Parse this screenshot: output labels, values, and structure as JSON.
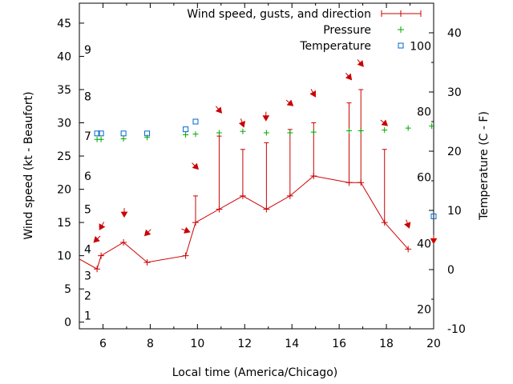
{
  "chart_data": {
    "type": "line",
    "xlabel": "Local time (America/Chicago)",
    "ylabel_left": "Wind speed (kt - Beaufort)",
    "ylabel_right": "Temperature (C - F)",
    "xlim": [
      5,
      20
    ],
    "ylim_left": [
      -1,
      48
    ],
    "ylim_right": [
      -10,
      45
    ],
    "x_ticks": [
      6,
      8,
      10,
      12,
      14,
      16,
      18,
      20
    ],
    "y_left_ticks": [
      0,
      5,
      10,
      15,
      20,
      25,
      30,
      35,
      40,
      45
    ],
    "y_right_ticks": [
      -10,
      0,
      10,
      20,
      30,
      40
    ],
    "beaufort_labels": [
      {
        "label": "1",
        "wind_kt": 1
      },
      {
        "label": "2",
        "wind_kt": 4
      },
      {
        "label": "3",
        "wind_kt": 7
      },
      {
        "label": "4",
        "wind_kt": 11
      },
      {
        "label": "5",
        "wind_kt": 17
      },
      {
        "label": "6",
        "wind_kt": 22
      },
      {
        "label": "7",
        "wind_kt": 28
      },
      {
        "label": "8",
        "wind_kt": 34
      },
      {
        "label": "9",
        "wind_kt": 41
      }
    ],
    "fahrenheit_labels": [
      {
        "label": "20",
        "temp_c": -6.7
      },
      {
        "label": "40",
        "temp_c": 4.4
      },
      {
        "label": "60",
        "temp_c": 15.6
      },
      {
        "label": "80",
        "temp_c": 26.7
      },
      {
        "label": "100",
        "temp_c": 37.8
      }
    ],
    "legend": {
      "wind": "Wind speed, gusts, and direction",
      "pressure": "Pressure",
      "temperature": "Temperature"
    },
    "wind_series": [
      {
        "x": 5.0,
        "speed": 9.5,
        "gust": null
      },
      {
        "x": 5.75,
        "speed": 8,
        "gust": null
      },
      {
        "x": 5.92,
        "speed": 10,
        "gust": null
      },
      {
        "x": 6.87,
        "speed": 12,
        "gust": null
      },
      {
        "x": 7.87,
        "speed": 9,
        "gust": null
      },
      {
        "x": 9.5,
        "speed": 10,
        "gust": null
      },
      {
        "x": 9.92,
        "speed": 15,
        "gust": 19
      },
      {
        "x": 10.92,
        "speed": 17,
        "gust": 28
      },
      {
        "x": 11.92,
        "speed": 19,
        "gust": 26
      },
      {
        "x": 12.92,
        "speed": 17,
        "gust": 27
      },
      {
        "x": 13.92,
        "speed": 19,
        "gust": 29
      },
      {
        "x": 14.92,
        "speed": 22,
        "gust": 30
      },
      {
        "x": 16.42,
        "speed": 21,
        "gust": 33
      },
      {
        "x": 16.92,
        "speed": 21,
        "gust": 35
      },
      {
        "x": 17.92,
        "speed": 15,
        "gust": 26
      },
      {
        "x": 18.92,
        "speed": 11,
        "gust": null
      }
    ],
    "wind_arrows": [
      {
        "x": 5.75,
        "y": 12.5,
        "to_deg": 225
      },
      {
        "x": 5.95,
        "y": 14.5,
        "to_deg": 210
      },
      {
        "x": 6.9,
        "y": 16.5,
        "to_deg": 180
      },
      {
        "x": 7.9,
        "y": 13.5,
        "to_deg": 225
      },
      {
        "x": 9.5,
        "y": 13.8,
        "to_deg": 110
      },
      {
        "x": 9.9,
        "y": 23.5,
        "to_deg": 135
      },
      {
        "x": 10.9,
        "y": 32.0,
        "to_deg": 140
      },
      {
        "x": 11.9,
        "y": 30.0,
        "to_deg": 160
      },
      {
        "x": 12.9,
        "y": 31.0,
        "to_deg": 180
      },
      {
        "x": 13.9,
        "y": 33.0,
        "to_deg": 130
      },
      {
        "x": 14.9,
        "y": 34.5,
        "to_deg": 150
      },
      {
        "x": 16.4,
        "y": 37.0,
        "to_deg": 140
      },
      {
        "x": 16.9,
        "y": 39.0,
        "to_deg": 140
      },
      {
        "x": 17.9,
        "y": 30.0,
        "to_deg": 130
      },
      {
        "x": 18.9,
        "y": 14.8,
        "to_deg": 160
      },
      {
        "x": 20.0,
        "y": 12.5,
        "to_deg": 180
      }
    ],
    "pressure_series": [
      {
        "x": 5.75,
        "y": 27.5
      },
      {
        "x": 5.92,
        "y": 27.5
      },
      {
        "x": 6.87,
        "y": 27.6
      },
      {
        "x": 7.87,
        "y": 27.8
      },
      {
        "x": 9.5,
        "y": 28.2
      },
      {
        "x": 9.92,
        "y": 28.3
      },
      {
        "x": 10.92,
        "y": 28.5
      },
      {
        "x": 11.92,
        "y": 28.7
      },
      {
        "x": 12.92,
        "y": 28.5
      },
      {
        "x": 13.92,
        "y": 28.5
      },
      {
        "x": 14.92,
        "y": 28.6
      },
      {
        "x": 16.42,
        "y": 28.8
      },
      {
        "x": 16.92,
        "y": 28.8
      },
      {
        "x": 17.92,
        "y": 28.9
      },
      {
        "x": 18.92,
        "y": 29.2
      },
      {
        "x": 19.92,
        "y": 29.5
      }
    ],
    "temperature_series": [
      {
        "x": 5.75,
        "y": 23.0
      },
      {
        "x": 5.92,
        "y": 23.0
      },
      {
        "x": 6.87,
        "y": 23.0
      },
      {
        "x": 7.87,
        "y": 23.0
      },
      {
        "x": 9.5,
        "y": 23.7
      },
      {
        "x": 9.92,
        "y": 25.0
      },
      {
        "x": 20.0,
        "y": 9.0
      }
    ],
    "colors": {
      "wind": "#cc0000",
      "pressure": "#00aa00",
      "temperature": "#0066cc",
      "axis": "#000000"
    }
  }
}
